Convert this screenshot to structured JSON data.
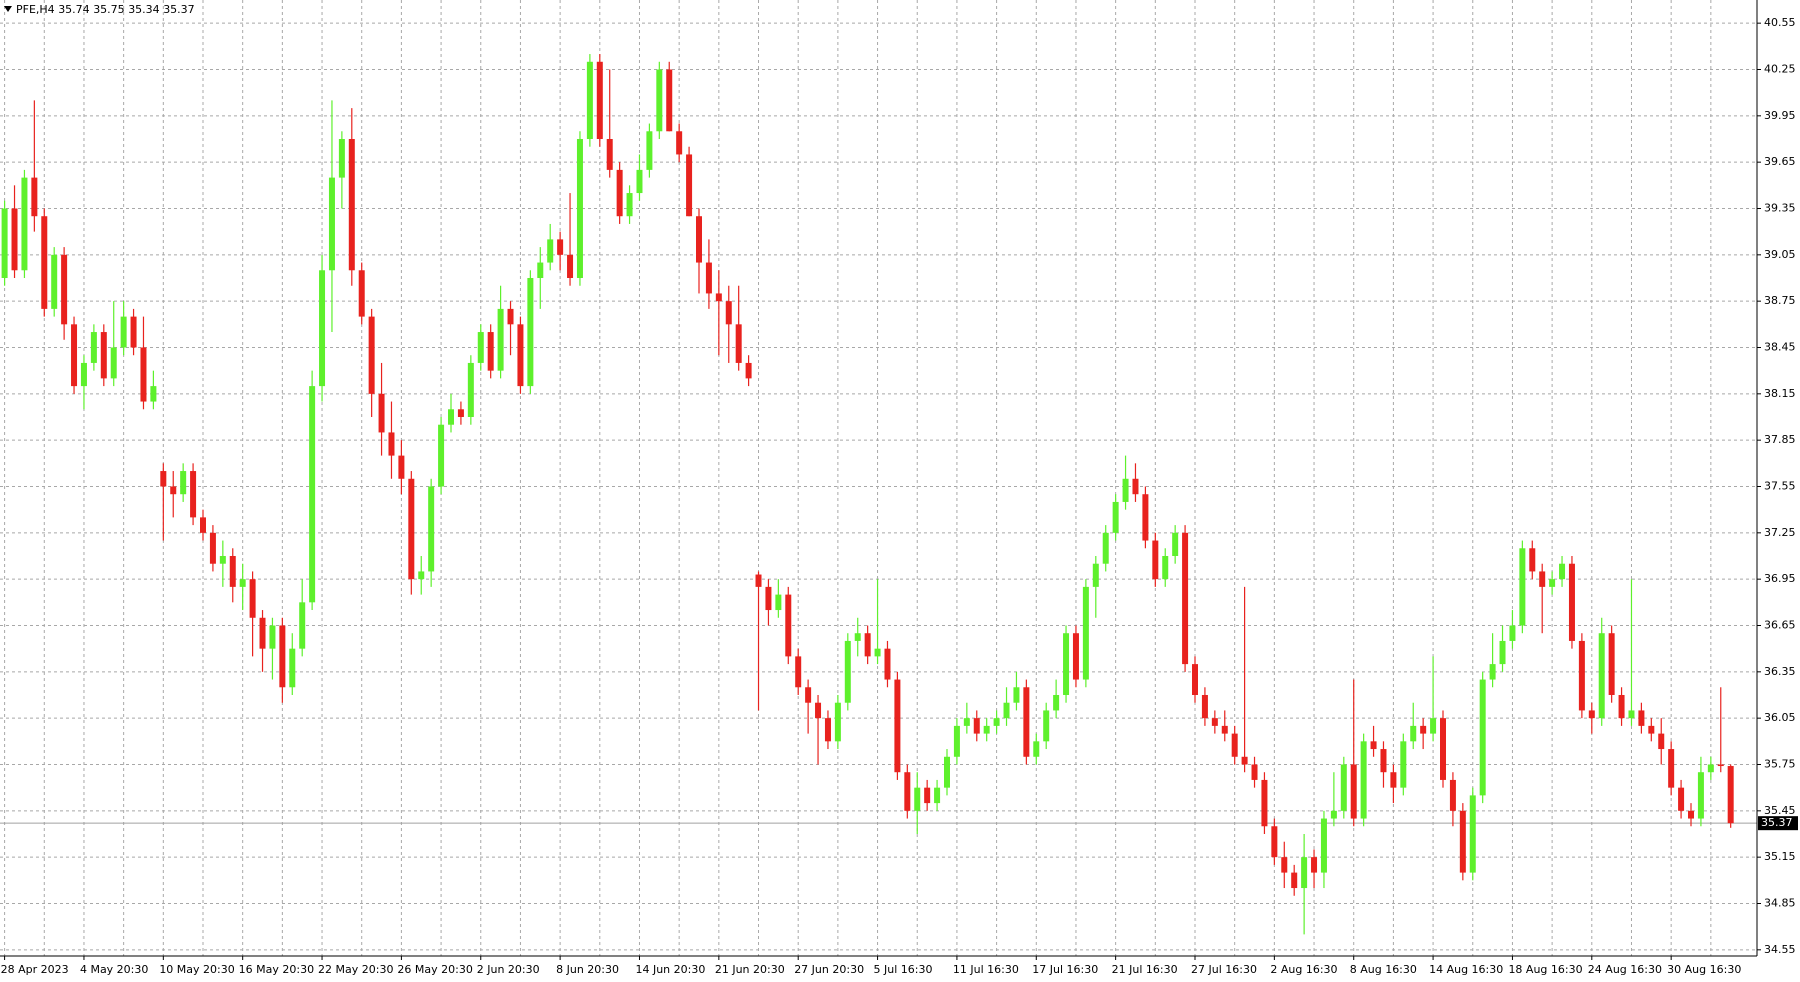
{
  "chart_data": {
    "type": "candlestick",
    "symbol": "PFE,H4",
    "up_color": "#5ef02c",
    "down_color": "#e8221e",
    "grid": true,
    "ylim": [
      34.51,
      40.7
    ],
    "yticks": [
      34.55,
      34.85,
      35.15,
      35.45,
      35.75,
      36.05,
      36.35,
      36.65,
      36.95,
      37.25,
      37.55,
      37.85,
      38.15,
      38.45,
      38.75,
      39.05,
      39.35,
      39.65,
      39.95,
      40.25,
      40.55
    ],
    "categories": [
      "28 Apr 2023",
      null,
      null,
      null,
      null,
      null,
      null,
      null,
      "4 May 20:30",
      null,
      null,
      null,
      null,
      null,
      null,
      null,
      "10 May 20:30",
      null,
      null,
      null,
      null,
      null,
      null,
      null,
      "16 May 20:30",
      null,
      null,
      null,
      null,
      null,
      null,
      null,
      "22 May 20:30",
      null,
      null,
      null,
      null,
      null,
      null,
      null,
      "26 May 20:30",
      null,
      null,
      null,
      null,
      null,
      null,
      null,
      "2 Jun 20:30",
      null,
      null,
      null,
      null,
      null,
      null,
      null,
      "8 Jun 20:30",
      null,
      null,
      null,
      null,
      null,
      null,
      null,
      "14 Jun 20:30",
      null,
      null,
      null,
      null,
      null,
      null,
      null,
      "21 Jun 20:30",
      null,
      null,
      null,
      null,
      null,
      null,
      null,
      "27 Jun 20:30",
      null,
      null,
      null,
      null,
      null,
      null,
      null,
      "5 Jul 16:30",
      null,
      null,
      null,
      null,
      null,
      null,
      null,
      "11 Jul 16:30",
      null,
      null,
      null,
      null,
      null,
      null,
      null,
      "17 Jul 16:30",
      null,
      null,
      null,
      null,
      null,
      null,
      null,
      "21 Jul 16:30",
      null,
      null,
      null,
      null,
      null,
      null,
      null,
      "27 Jul 16:30",
      null,
      null,
      null,
      null,
      null,
      null,
      null,
      "2 Aug 16:30",
      null,
      null,
      null,
      null,
      null,
      null,
      null,
      "8 Aug 16:30",
      null,
      null,
      null,
      null,
      null,
      null,
      null,
      "14 Aug 16:30",
      null,
      null,
      null,
      null,
      null,
      null,
      null,
      "18 Aug 16:30",
      null,
      null,
      null,
      null,
      null,
      null,
      null,
      "24 Aug 16:30",
      null,
      null,
      null,
      null,
      null,
      null,
      null,
      "30 Aug 16:30",
      null,
      null,
      null,
      null,
      null,
      null
    ],
    "ohlc": [
      [
        38.9,
        39.4,
        38.85,
        39.35
      ],
      [
        39.35,
        39.5,
        38.9,
        38.95
      ],
      [
        38.95,
        39.6,
        38.9,
        39.55
      ],
      [
        39.55,
        40.05,
        39.2,
        39.3
      ],
      [
        39.3,
        39.35,
        38.65,
        38.7
      ],
      [
        38.7,
        39.1,
        38.65,
        39.05
      ],
      [
        39.05,
        39.1,
        38.5,
        38.6
      ],
      [
        38.6,
        38.65,
        38.15,
        38.2
      ],
      [
        38.2,
        38.4,
        38.05,
        38.35
      ],
      [
        38.35,
        38.6,
        38.3,
        38.55
      ],
      [
        38.55,
        38.6,
        38.2,
        38.25
      ],
      [
        38.25,
        38.75,
        38.2,
        38.45
      ],
      [
        38.45,
        38.75,
        38.4,
        38.65
      ],
      [
        38.65,
        38.7,
        38.4,
        38.45
      ],
      [
        38.45,
        38.65,
        38.05,
        38.1
      ],
      [
        38.1,
        38.3,
        38.05,
        38.2
      ],
      [
        37.65,
        37.7,
        37.2,
        37.55
      ],
      [
        37.55,
        37.65,
        37.35,
        37.5
      ],
      [
        37.5,
        37.7,
        37.45,
        37.65
      ],
      [
        37.65,
        37.7,
        37.3,
        37.35
      ],
      [
        37.35,
        37.4,
        37.2,
        37.25
      ],
      [
        37.25,
        37.3,
        37.0,
        37.05
      ],
      [
        37.05,
        37.2,
        36.9,
        37.1
      ],
      [
        37.1,
        37.15,
        36.8,
        36.9
      ],
      [
        36.9,
        37.05,
        36.75,
        36.95
      ],
      [
        36.95,
        37.0,
        36.45,
        36.7
      ],
      [
        36.7,
        36.75,
        36.35,
        36.5
      ],
      [
        36.5,
        36.7,
        36.3,
        36.65
      ],
      [
        36.65,
        36.7,
        36.15,
        36.25
      ],
      [
        36.25,
        36.6,
        36.2,
        36.5
      ],
      [
        36.5,
        36.95,
        36.45,
        36.8
      ],
      [
        36.8,
        38.3,
        36.75,
        38.2
      ],
      [
        38.2,
        39.05,
        38.1,
        38.95
      ],
      [
        38.95,
        40.05,
        38.55,
        39.55
      ],
      [
        39.55,
        39.85,
        39.35,
        39.8
      ],
      [
        39.8,
        40.0,
        38.85,
        38.95
      ],
      [
        38.95,
        39.0,
        38.6,
        38.65
      ],
      [
        38.65,
        38.7,
        38.0,
        38.15
      ],
      [
        38.15,
        38.35,
        37.75,
        37.9
      ],
      [
        37.9,
        38.1,
        37.6,
        37.75
      ],
      [
        37.75,
        37.85,
        37.5,
        37.6
      ],
      [
        37.6,
        37.65,
        36.85,
        36.95
      ],
      [
        36.95,
        37.1,
        36.85,
        37.0
      ],
      [
        37.0,
        37.6,
        36.9,
        37.55
      ],
      [
        37.55,
        38.0,
        37.5,
        37.95
      ],
      [
        37.95,
        38.15,
        37.9,
        38.05
      ],
      [
        38.05,
        38.1,
        37.95,
        38.0
      ],
      [
        38.0,
        38.4,
        37.95,
        38.35
      ],
      [
        38.35,
        38.6,
        38.3,
        38.55
      ],
      [
        38.55,
        38.6,
        38.25,
        38.3
      ],
      [
        38.3,
        38.85,
        38.25,
        38.7
      ],
      [
        38.7,
        38.75,
        38.4,
        38.6
      ],
      [
        38.6,
        38.65,
        38.15,
        38.2
      ],
      [
        38.2,
        38.95,
        38.15,
        38.9
      ],
      [
        38.9,
        39.1,
        38.7,
        39.0
      ],
      [
        39.0,
        39.25,
        38.95,
        39.15
      ],
      [
        39.15,
        39.2,
        38.95,
        39.05
      ],
      [
        39.05,
        39.45,
        38.85,
        38.9
      ],
      [
        38.9,
        39.85,
        38.85,
        39.8
      ],
      [
        39.8,
        40.35,
        39.75,
        40.3
      ],
      [
        40.3,
        40.35,
        39.75,
        39.8
      ],
      [
        39.8,
        40.25,
        39.55,
        39.6
      ],
      [
        39.6,
        39.65,
        39.25,
        39.3
      ],
      [
        39.3,
        39.5,
        39.25,
        39.45
      ],
      [
        39.45,
        39.7,
        39.4,
        39.6
      ],
      [
        39.6,
        39.9,
        39.55,
        39.85
      ],
      [
        39.85,
        40.3,
        39.8,
        40.25
      ],
      [
        40.25,
        40.3,
        39.85,
        39.85
      ],
      [
        39.85,
        39.9,
        39.65,
        39.7
      ],
      [
        39.7,
        39.75,
        39.3,
        39.3
      ],
      [
        39.3,
        39.35,
        38.8,
        39.0
      ],
      [
        39.0,
        39.15,
        38.7,
        38.8
      ],
      [
        38.8,
        38.95,
        38.4,
        38.75
      ],
      [
        38.75,
        38.85,
        38.35,
        38.6
      ],
      [
        38.6,
        38.85,
        38.3,
        38.35
      ],
      [
        38.35,
        38.4,
        38.2,
        38.25
      ],
      [
        36.98,
        37.0,
        36.1,
        36.9
      ],
      [
        36.9,
        36.95,
        36.65,
        36.75
      ],
      [
        36.75,
        36.95,
        36.7,
        36.85
      ],
      [
        36.85,
        36.9,
        36.4,
        36.45
      ],
      [
        36.45,
        36.5,
        36.2,
        36.25
      ],
      [
        36.25,
        36.3,
        35.95,
        36.15
      ],
      [
        36.15,
        36.2,
        35.75,
        36.05
      ],
      [
        36.05,
        36.1,
        35.85,
        35.9
      ],
      [
        35.9,
        36.2,
        35.85,
        36.15
      ],
      [
        36.15,
        36.6,
        36.1,
        36.55
      ],
      [
        36.55,
        36.7,
        36.45,
        36.6
      ],
      [
        36.6,
        36.65,
        36.4,
        36.45
      ],
      [
        36.45,
        36.95,
        36.4,
        36.5
      ],
      [
        36.5,
        36.55,
        36.25,
        36.3
      ],
      [
        36.3,
        36.35,
        35.65,
        35.7
      ],
      [
        35.7,
        35.75,
        35.4,
        35.45
      ],
      [
        35.45,
        35.7,
        35.3,
        35.6
      ],
      [
        35.6,
        35.65,
        35.45,
        35.5
      ],
      [
        35.5,
        35.65,
        35.45,
        35.6
      ],
      [
        35.6,
        35.85,
        35.55,
        35.8
      ],
      [
        35.8,
        36.05,
        35.75,
        36.0
      ],
      [
        36.0,
        36.15,
        35.95,
        36.05
      ],
      [
        36.05,
        36.1,
        35.9,
        35.95
      ],
      [
        35.95,
        36.05,
        35.9,
        36.0
      ],
      [
        36.0,
        36.1,
        35.95,
        36.05
      ],
      [
        36.05,
        36.25,
        36.0,
        36.15
      ],
      [
        36.15,
        36.35,
        36.1,
        36.25
      ],
      [
        36.25,
        36.3,
        35.75,
        35.8
      ],
      [
        35.8,
        35.95,
        35.75,
        35.9
      ],
      [
        35.9,
        36.15,
        35.85,
        36.1
      ],
      [
        36.1,
        36.3,
        36.05,
        36.2
      ],
      [
        36.2,
        36.65,
        36.15,
        36.6
      ],
      [
        36.6,
        36.65,
        36.25,
        36.3
      ],
      [
        36.3,
        36.95,
        36.25,
        36.9
      ],
      [
        36.9,
        37.1,
        36.7,
        37.05
      ],
      [
        37.05,
        37.3,
        37.0,
        37.25
      ],
      [
        37.25,
        37.5,
        37.2,
        37.45
      ],
      [
        37.45,
        37.75,
        37.4,
        37.6
      ],
      [
        37.6,
        37.7,
        37.45,
        37.5
      ],
      [
        37.5,
        37.55,
        37.15,
        37.2
      ],
      [
        37.2,
        37.25,
        36.9,
        36.95
      ],
      [
        36.95,
        37.15,
        36.9,
        37.1
      ],
      [
        37.1,
        37.3,
        37.05,
        37.25
      ],
      [
        37.25,
        37.3,
        36.35,
        36.4
      ],
      [
        36.4,
        36.45,
        36.15,
        36.2
      ],
      [
        36.2,
        36.25,
        36.0,
        36.05
      ],
      [
        36.05,
        36.1,
        35.95,
        36.0
      ],
      [
        36.0,
        36.1,
        35.9,
        35.95
      ],
      [
        35.95,
        36.0,
        35.75,
        35.8
      ],
      [
        35.8,
        36.9,
        35.7,
        35.75
      ],
      [
        35.75,
        35.8,
        35.6,
        35.65
      ],
      [
        35.65,
        35.7,
        35.3,
        35.35
      ],
      [
        35.35,
        35.4,
        35.1,
        35.15
      ],
      [
        35.15,
        35.25,
        34.95,
        35.05
      ],
      [
        35.05,
        35.1,
        34.9,
        34.95
      ],
      [
        34.95,
        35.3,
        34.65,
        35.15
      ],
      [
        35.15,
        35.2,
        34.95,
        35.05
      ],
      [
        35.05,
        35.45,
        34.95,
        35.4
      ],
      [
        35.4,
        35.7,
        35.35,
        35.45
      ],
      [
        35.45,
        35.8,
        35.4,
        35.75
      ],
      [
        35.75,
        36.3,
        35.35,
        35.4
      ],
      [
        35.4,
        35.95,
        35.35,
        35.9
      ],
      [
        35.9,
        36.0,
        35.8,
        35.85
      ],
      [
        35.85,
        35.9,
        35.6,
        35.7
      ],
      [
        35.7,
        35.75,
        35.5,
        35.6
      ],
      [
        35.6,
        35.95,
        35.55,
        35.9
      ],
      [
        35.9,
        36.15,
        35.85,
        36.0
      ],
      [
        36.0,
        36.05,
        35.85,
        35.95
      ],
      [
        35.95,
        36.45,
        35.9,
        36.05
      ],
      [
        36.05,
        36.1,
        35.6,
        35.65
      ],
      [
        35.65,
        35.7,
        35.35,
        35.45
      ],
      [
        35.45,
        35.5,
        35.0,
        35.05
      ],
      [
        35.05,
        35.6,
        35.0,
        35.55
      ],
      [
        35.55,
        36.35,
        35.5,
        36.3
      ],
      [
        36.3,
        36.6,
        36.25,
        36.4
      ],
      [
        36.4,
        36.65,
        36.35,
        36.55
      ],
      [
        36.55,
        36.75,
        36.5,
        36.65
      ],
      [
        36.65,
        37.2,
        36.6,
        37.15
      ],
      [
        37.15,
        37.2,
        36.95,
        37.0
      ],
      [
        37.0,
        37.05,
        36.6,
        36.9
      ],
      [
        36.9,
        37.0,
        36.85,
        36.95
      ],
      [
        36.95,
        37.1,
        36.9,
        37.05
      ],
      [
        37.05,
        37.1,
        36.5,
        36.55
      ],
      [
        36.55,
        36.6,
        36.05,
        36.1
      ],
      [
        36.1,
        36.15,
        35.95,
        36.05
      ],
      [
        36.05,
        36.7,
        36.0,
        36.6
      ],
      [
        36.6,
        36.65,
        36.15,
        36.2
      ],
      [
        36.2,
        36.25,
        36.0,
        36.05
      ],
      [
        36.05,
        36.95,
        36.0,
        36.1
      ],
      [
        36.1,
        36.15,
        35.95,
        36.0
      ],
      [
        36.0,
        36.05,
        35.9,
        35.95
      ],
      [
        35.95,
        36.05,
        35.75,
        35.85
      ],
      [
        35.85,
        35.9,
        35.55,
        35.6
      ],
      [
        35.6,
        35.65,
        35.4,
        35.45
      ],
      [
        35.45,
        35.5,
        35.35,
        35.4
      ],
      [
        35.4,
        35.8,
        35.35,
        35.7
      ],
      [
        35.7,
        35.8,
        35.65,
        35.75
      ],
      [
        35.75,
        36.25,
        35.7,
        35.74
      ],
      [
        35.74,
        35.75,
        35.34,
        35.37
      ]
    ]
  }
}
